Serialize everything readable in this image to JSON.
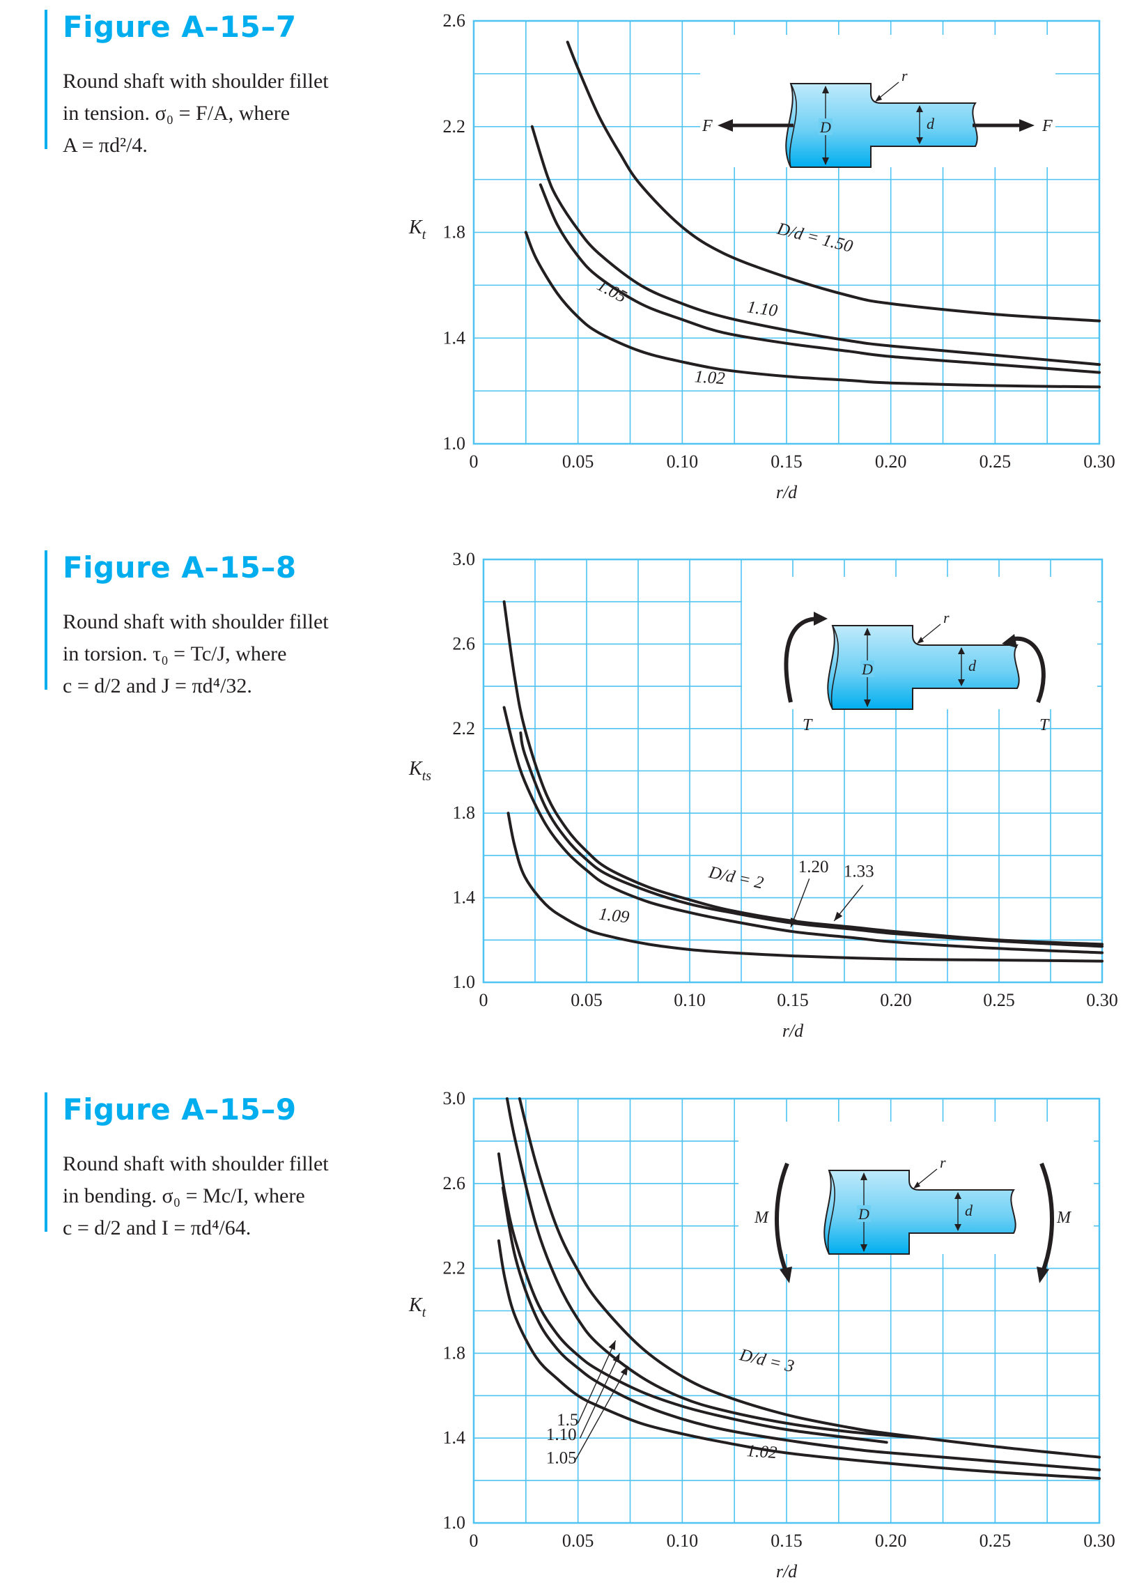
{
  "figures": [
    {
      "title": "Figure A–15–7",
      "caption_lines": [
        "Round shaft with shoulder fillet",
        "in tension. σ₀ = F/A, where",
        "A = πd²/4."
      ],
      "diagram": {
        "type": "tension",
        "labels": {
          "left_load": "F",
          "right_load": "F",
          "big_dia": "D",
          "small_dia": "d",
          "fillet": "r"
        }
      }
    },
    {
      "title": "Figure A–15–8",
      "caption_lines": [
        "Round shaft with shoulder fillet",
        "in torsion. τ₀ = Tc/J, where",
        "c = d/2 and J = πd⁴/32."
      ],
      "diagram": {
        "type": "torsion",
        "labels": {
          "left_load": "T",
          "right_load": "T",
          "big_dia": "D",
          "small_dia": "d",
          "fillet": "r"
        }
      }
    },
    {
      "title": "Figure A–15–9",
      "caption_lines": [
        "Round shaft with shoulder fillet",
        "in bending. σ₀ = Mc/I, where",
        "c = d/2 and I = πd⁴/64."
      ],
      "diagram": {
        "type": "bending",
        "labels": {
          "left_load": "M",
          "right_load": "M",
          "big_dia": "D",
          "small_dia": "d",
          "fillet": "r"
        }
      }
    }
  ],
  "colors": {
    "accent": "#00aeef",
    "grid": "#4fc3f1",
    "plot_bg": "#ffffff",
    "curve": "#231f20",
    "part_fill": "#6fd0f4",
    "part_dark": "#00aeef"
  },
  "chart_data": [
    {
      "type": "line",
      "xlabel": "r/d",
      "ylabel": "K",
      "ylabel_sub": "t",
      "xlim": [
        0,
        0.3
      ],
      "ylim": [
        1.0,
        2.6
      ],
      "xticks": [
        0,
        0.05,
        0.1,
        0.15,
        0.2,
        0.25,
        0.3
      ],
      "xtick_labels": [
        "0",
        "0.05",
        "0.10",
        "0.15",
        "0.20",
        "0.25",
        "0.30"
      ],
      "yticks": [
        1.0,
        1.4,
        1.8,
        2.2,
        2.6
      ],
      "ytick_labels": [
        "1.0",
        "1.4",
        "1.8",
        "2.2",
        "2.6"
      ],
      "grid": true,
      "series": [
        {
          "name": "D/d = 1.50",
          "x": [
            0.045,
            0.05,
            0.06,
            0.07,
            0.08,
            0.1,
            0.12,
            0.15,
            0.18,
            0.2,
            0.25,
            0.3
          ],
          "y": [
            2.52,
            2.42,
            2.24,
            2.1,
            1.98,
            1.82,
            1.72,
            1.63,
            1.56,
            1.53,
            1.49,
            1.465
          ]
        },
        {
          "name": "1.10",
          "x": [
            0.028,
            0.035,
            0.04,
            0.05,
            0.06,
            0.08,
            0.1,
            0.12,
            0.15,
            0.18,
            0.2,
            0.25,
            0.3
          ],
          "y": [
            2.2,
            2.02,
            1.93,
            1.81,
            1.72,
            1.6,
            1.53,
            1.48,
            1.43,
            1.39,
            1.37,
            1.335,
            1.3
          ]
        },
        {
          "name": "1.05",
          "x": [
            0.032,
            0.04,
            0.05,
            0.06,
            0.08,
            0.1,
            0.12,
            0.15,
            0.18,
            0.2,
            0.25,
            0.3
          ],
          "y": [
            1.98,
            1.83,
            1.71,
            1.63,
            1.53,
            1.47,
            1.42,
            1.38,
            1.35,
            1.33,
            1.3,
            1.27
          ]
        },
        {
          "name": "1.02",
          "x": [
            0.025,
            0.03,
            0.04,
            0.05,
            0.06,
            0.08,
            0.1,
            0.12,
            0.15,
            0.18,
            0.2,
            0.25,
            0.3
          ],
          "y": [
            1.8,
            1.7,
            1.57,
            1.48,
            1.42,
            1.35,
            1.31,
            1.28,
            1.255,
            1.24,
            1.23,
            1.22,
            1.215
          ]
        }
      ],
      "curve_labels": [
        {
          "text": "D/d = 1.50",
          "x": 0.163,
          "y": 1.76,
          "angle": 14
        },
        {
          "text": "1.10",
          "x": 0.138,
          "y": 1.49,
          "angle": 8
        },
        {
          "text": "1.05",
          "x": 0.065,
          "y": 1.56,
          "angle": 28
        },
        {
          "text": "1.02",
          "x": 0.113,
          "y": 1.23,
          "angle": 4
        }
      ]
    },
    {
      "type": "line",
      "xlabel": "r/d",
      "ylabel": "K",
      "ylabel_sub": "ts",
      "xlim": [
        0,
        0.3
      ],
      "ylim": [
        1.0,
        3.0
      ],
      "xticks": [
        0,
        0.05,
        0.1,
        0.15,
        0.2,
        0.25,
        0.3
      ],
      "xtick_labels": [
        "0",
        "0.05",
        "0.10",
        "0.15",
        "0.20",
        "0.25",
        "0.30"
      ],
      "yticks": [
        1.0,
        1.4,
        1.8,
        2.2,
        2.6,
        3.0
      ],
      "ytick_labels": [
        "1.0",
        "1.4",
        "1.8",
        "2.2",
        "2.6",
        "3.0"
      ],
      "grid": true,
      "series": [
        {
          "name": "D/d = 2",
          "x": [
            0.01,
            0.015,
            0.02,
            0.03,
            0.04,
            0.05,
            0.06,
            0.08,
            0.1,
            0.12,
            0.15,
            0.18,
            0.2,
            0.25,
            0.3
          ],
          "y": [
            2.8,
            2.45,
            2.2,
            1.9,
            1.73,
            1.62,
            1.54,
            1.45,
            1.39,
            1.34,
            1.29,
            1.26,
            1.24,
            1.2,
            1.18
          ]
        },
        {
          "name": "1.33",
          "x": [
            0.018,
            0.02,
            0.03,
            0.04,
            0.05,
            0.06,
            0.08,
            0.1,
            0.12,
            0.15,
            0.18,
            0.2,
            0.25,
            0.3
          ],
          "y": [
            2.18,
            2.08,
            1.83,
            1.68,
            1.58,
            1.51,
            1.43,
            1.37,
            1.33,
            1.28,
            1.25,
            1.23,
            1.195,
            1.17
          ]
        },
        {
          "name": "1.20",
          "x": [
            0.01,
            0.015,
            0.02,
            0.03,
            0.04,
            0.05,
            0.06,
            0.08,
            0.1,
            0.12,
            0.15,
            0.18,
            0.2,
            0.25,
            0.3
          ],
          "y": [
            2.3,
            2.1,
            1.95,
            1.75,
            1.62,
            1.53,
            1.46,
            1.38,
            1.33,
            1.29,
            1.24,
            1.21,
            1.19,
            1.16,
            1.14
          ]
        },
        {
          "name": "1.09",
          "x": [
            0.012,
            0.015,
            0.02,
            0.03,
            0.04,
            0.05,
            0.06,
            0.08,
            0.1,
            0.12,
            0.15,
            0.2,
            0.25,
            0.3
          ],
          "y": [
            1.8,
            1.65,
            1.5,
            1.37,
            1.3,
            1.25,
            1.22,
            1.18,
            1.155,
            1.14,
            1.125,
            1.11,
            1.105,
            1.1
          ]
        }
      ],
      "curve_labels": [
        {
          "text": "D/d = 2",
          "x": 0.122,
          "y": 1.47,
          "angle": 12
        },
        {
          "text": "1.20",
          "x": 0.16,
          "y": 1.52,
          "angle": 0
        },
        {
          "text": "1.33",
          "x": 0.182,
          "y": 1.5,
          "angle": 0
        },
        {
          "text": "1.09",
          "x": 0.063,
          "y": 1.29,
          "angle": 7
        }
      ],
      "pointers": [
        {
          "from": [
            0.158,
            1.49
          ],
          "to": [
            0.149,
            1.26
          ]
        },
        {
          "from": [
            0.184,
            1.46
          ],
          "to": [
            0.17,
            1.29
          ]
        }
      ]
    },
    {
      "type": "line",
      "xlabel": "r/d",
      "ylabel": "K",
      "ylabel_sub": "t",
      "xlim": [
        0,
        0.3
      ],
      "ylim": [
        1.0,
        3.0
      ],
      "xticks": [
        0,
        0.05,
        0.1,
        0.15,
        0.2,
        0.25,
        0.3
      ],
      "xtick_labels": [
        "0",
        "0.05",
        "0.10",
        "0.15",
        "0.20",
        "0.25",
        "0.30"
      ],
      "yticks": [
        1.0,
        1.4,
        1.8,
        2.2,
        2.6,
        3.0
      ],
      "ytick_labels": [
        "1.0",
        "1.4",
        "1.8",
        "2.2",
        "2.6",
        "3.0"
      ],
      "grid": true,
      "series": [
        {
          "name": "D/d = 3",
          "x": [
            0.022,
            0.03,
            0.04,
            0.05,
            0.06,
            0.08,
            0.1,
            0.12,
            0.15,
            0.18,
            0.2,
            0.25,
            0.3
          ],
          "y": [
            3.0,
            2.69,
            2.39,
            2.19,
            2.04,
            1.83,
            1.69,
            1.6,
            1.51,
            1.45,
            1.42,
            1.36,
            1.31
          ]
        },
        {
          "name": "1.5",
          "x": [
            0.016,
            0.02,
            0.03,
            0.04,
            0.05,
            0.06,
            0.08,
            0.1,
            0.12,
            0.15,
            0.18,
            0.215
          ],
          "y": [
            3.0,
            2.8,
            2.4,
            2.14,
            1.96,
            1.84,
            1.69,
            1.59,
            1.53,
            1.47,
            1.43,
            1.4
          ]
        },
        {
          "name": "1.10",
          "x": [
            0.012,
            0.015,
            0.02,
            0.03,
            0.04,
            0.05,
            0.06,
            0.08,
            0.1,
            0.12,
            0.15,
            0.198
          ],
          "y": [
            2.74,
            2.55,
            2.33,
            2.05,
            1.89,
            1.79,
            1.72,
            1.62,
            1.55,
            1.5,
            1.44,
            1.38
          ]
        },
        {
          "name": "1.05",
          "x": [
            0.014,
            0.02,
            0.03,
            0.04,
            0.05,
            0.06,
            0.08,
            0.1,
            0.12,
            0.15,
            0.18,
            0.2,
            0.25,
            0.3
          ],
          "y": [
            2.58,
            2.25,
            1.97,
            1.82,
            1.73,
            1.66,
            1.56,
            1.49,
            1.44,
            1.39,
            1.35,
            1.33,
            1.29,
            1.25
          ]
        },
        {
          "name": "1.02",
          "x": [
            0.012,
            0.015,
            0.02,
            0.03,
            0.04,
            0.05,
            0.06,
            0.08,
            0.1,
            0.12,
            0.15,
            0.2,
            0.25,
            0.3
          ],
          "y": [
            2.33,
            2.15,
            1.97,
            1.78,
            1.68,
            1.6,
            1.55,
            1.47,
            1.42,
            1.38,
            1.33,
            1.28,
            1.24,
            1.21
          ]
        }
      ],
      "curve_labels": [
        {
          "text": "D/d = 3",
          "x": 0.14,
          "y": 1.74,
          "angle": 13
        },
        {
          "text": "1.5",
          "x": 0.045,
          "y": 1.46,
          "angle": 0
        },
        {
          "text": "1.10",
          "x": 0.042,
          "y": 1.39,
          "angle": 0
        },
        {
          "text": "1.05",
          "x": 0.042,
          "y": 1.28,
          "angle": 0
        },
        {
          "text": "1.02",
          "x": 0.138,
          "y": 1.31,
          "angle": 4
        }
      ],
      "pointers": [
        {
          "from": [
            0.05,
            1.47
          ],
          "to": [
            0.068,
            1.86
          ]
        },
        {
          "from": [
            0.051,
            1.4
          ],
          "to": [
            0.07,
            1.8
          ]
        },
        {
          "from": [
            0.049,
            1.3
          ],
          "to": [
            0.074,
            1.74
          ]
        }
      ]
    }
  ]
}
